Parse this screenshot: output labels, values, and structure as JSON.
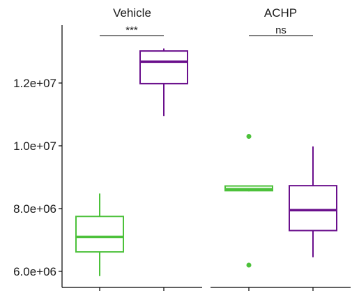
{
  "chart_data": {
    "type": "boxplot",
    "facets": [
      "Vehicle",
      "ACHP"
    ],
    "y_ticks": [
      6000000,
      8000000,
      10000000,
      12000000
    ],
    "y_tick_labels": [
      "6.0e+06",
      "8.0e+06",
      "1.0e+07",
      "1.2e+07"
    ],
    "ylim": [
      5500000,
      13600000
    ],
    "grid": false,
    "significance": [
      {
        "facet": "Vehicle",
        "label": "***"
      },
      {
        "facet": "ACHP",
        "label": "ns"
      }
    ],
    "boxes": [
      {
        "facet": "Vehicle",
        "position": 1,
        "color": "#4CC13A",
        "min": 5850000,
        "q1": 6620000,
        "median": 7100000,
        "q3": 7750000,
        "max": 8480000,
        "outliers": []
      },
      {
        "facet": "Vehicle",
        "position": 2,
        "color": "#6A0F8C",
        "min": 10950000,
        "q1": 11980000,
        "median": 12680000,
        "q3": 13020000,
        "max": 13100000,
        "outliers": []
      },
      {
        "facet": "ACHP",
        "position": 1,
        "color": "#4CC13A",
        "min": 8550000,
        "q1": 8570000,
        "median": 8620000,
        "q3": 8720000,
        "max": 8720000,
        "outliers": [
          10300000,
          6200000
        ]
      },
      {
        "facet": "ACHP",
        "position": 2,
        "color": "#6A0F8C",
        "min": 6450000,
        "q1": 7300000,
        "median": 7950000,
        "q3": 8730000,
        "max": 9980000,
        "outliers": []
      }
    ]
  }
}
